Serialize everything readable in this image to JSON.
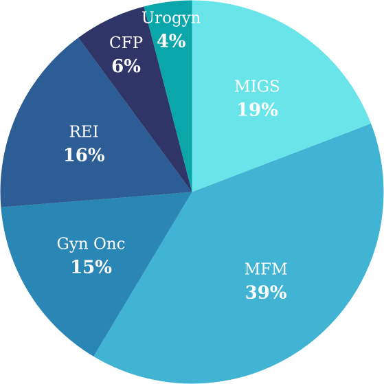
{
  "chart_data": {
    "type": "pie",
    "title": "",
    "slices": [
      {
        "label": "MIGS",
        "value": 19,
        "value_label": "19%",
        "color": "#69e4e8"
      },
      {
        "label": "MFM",
        "value": 39,
        "value_label": "39%",
        "color": "#41b4d3"
      },
      {
        "label": "Gyn Onc",
        "value": 15,
        "value_label": "15%",
        "color": "#2a86b4"
      },
      {
        "label": "REI",
        "value": 16,
        "value_label": "16%",
        "color": "#2c5d95"
      },
      {
        "label": "CFP",
        "value": 6,
        "value_label": "6%",
        "color": "#2f3567"
      },
      {
        "label": "Urogyn",
        "value": 4,
        "value_label": "4%",
        "color": "#0aa6aa"
      }
    ],
    "start_angle": "12 o'clock",
    "direction": "clockwise",
    "legend": "none"
  }
}
